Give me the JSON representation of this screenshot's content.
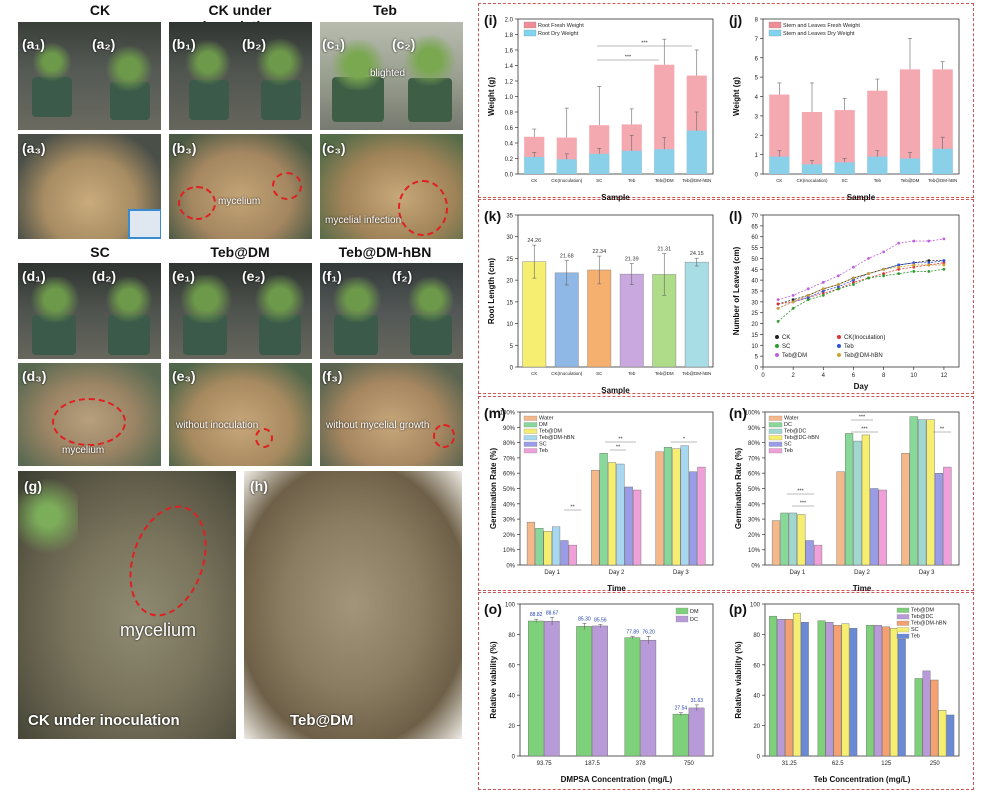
{
  "photos": {
    "group_titles": [
      "CK",
      "CK under inoculation",
      "Teb",
      "SC",
      "Teb@DM",
      "Teb@DM-hBN"
    ],
    "row1_labels": [
      "(a₁)",
      "(a₂)",
      "(b₁)",
      "(b₂)",
      "(c₁)",
      "(c₂)"
    ],
    "row2_labels": [
      "(a₃)",
      "(b₃)",
      "(c₃)"
    ],
    "row3_labels": [
      "(d₁)",
      "(d₂)",
      "(e₁)",
      "(e₂)",
      "(f₁)",
      "(f₂)"
    ],
    "row4_labels": [
      "(d₃)",
      "(e₃)",
      "(f₃)"
    ],
    "label_g": "(g)",
    "label_h": "(h)",
    "notes": {
      "blighted": "blighted",
      "mycelium_b3": "mycelium",
      "mycelial_infection": "mycelial infection",
      "mycelium_d3": "mycelium",
      "without_inoculation": "without inoculation",
      "without_mycelial_growth": "without mycelial growth",
      "mycelium_g": "mycelium"
    },
    "caption_g": "CK under inoculation",
    "caption_h": "Teb@DM"
  },
  "chart_data": [
    {
      "id": "i",
      "label": "(i)",
      "type": "bar",
      "categories": [
        "CK",
        "CK(Inoculation)",
        "SC",
        "Teb",
        "Teb@DM",
        "Teb@DM-hBN"
      ],
      "series": [
        {
          "name": "Root Fresh Weight",
          "values": [
            0.48,
            0.47,
            0.63,
            0.64,
            1.41,
            1.27
          ],
          "err": [
            0.1,
            0.38,
            0.5,
            0.2,
            0.33,
            0.33
          ],
          "color": "#f08c96"
        },
        {
          "name": "Root Dry Weight",
          "values": [
            0.22,
            0.19,
            0.26,
            0.3,
            0.32,
            0.56
          ],
          "err": [
            0.06,
            0.07,
            0.07,
            0.2,
            0.15,
            0.24
          ],
          "color": "#7fd4f0"
        }
      ],
      "xlabel": "Sample",
      "ylabel": "Weight (g)",
      "ylim": [
        0,
        2.0
      ],
      "yticks": [
        "0.0",
        "0.2",
        "0.4",
        "0.6",
        "0.8",
        "1.0",
        "1.2",
        "1.4",
        "1.6",
        "1.8",
        "2.0"
      ],
      "sig": [
        "***",
        "***"
      ]
    },
    {
      "id": "j",
      "label": "(j)",
      "type": "bar",
      "categories": [
        "CK",
        "CK(Inoculation)",
        "SC",
        "Teb",
        "Teb@DM",
        "Teb@DM-hBN"
      ],
      "series": [
        {
          "name": "Stem and Leaves Fresh Weight",
          "values": [
            4.1,
            3.2,
            3.3,
            4.3,
            5.4,
            5.4
          ],
          "err": [
            0.6,
            1.5,
            0.6,
            0.6,
            1.6,
            0.4
          ],
          "color": "#f08c96"
        },
        {
          "name": "Stem and Leaves Dry Weight",
          "values": [
            0.9,
            0.5,
            0.6,
            0.9,
            0.8,
            1.3
          ],
          "err": [
            0.3,
            0.2,
            0.2,
            0.3,
            0.3,
            0.6
          ],
          "color": "#7fd4f0"
        }
      ],
      "xlabel": "Sample",
      "ylabel": "Weight (g)",
      "ylim": [
        0,
        8
      ],
      "yticks": [
        "0",
        "1",
        "2",
        "3",
        "4",
        "5",
        "6",
        "7",
        "8"
      ]
    },
    {
      "id": "k",
      "label": "(k)",
      "type": "bar",
      "categories": [
        "CK",
        "CK(Inoculation)",
        "SC",
        "Teb",
        "Teb@DM",
        "Teb@DM-hBN"
      ],
      "values": [
        24.26,
        21.68,
        22.34,
        21.39,
        21.31,
        24.15
      ],
      "value_labels": [
        "24.26",
        "21.68",
        "22.34",
        "21.39",
        "21.31",
        "24.15"
      ],
      "err": [
        3.8,
        2.8,
        3.2,
        2.4,
        4.8,
        0.9
      ],
      "colors": [
        "#f5ee70",
        "#8fb8e6",
        "#f5b070",
        "#c9a8e0",
        "#aedc88",
        "#a8dde6"
      ],
      "xlabel": "Sample",
      "ylabel": "Root Length (cm)",
      "ylim": [
        0,
        35
      ],
      "yticks": [
        "0",
        "5",
        "10",
        "15",
        "20",
        "25",
        "30",
        "35"
      ]
    },
    {
      "id": "l",
      "label": "(l)",
      "type": "line",
      "x": [
        1,
        2,
        3,
        4,
        5,
        6,
        7,
        8,
        9,
        10,
        11,
        12
      ],
      "series": [
        {
          "name": "CK",
          "values": [
            29,
            31,
            33,
            36,
            38,
            41,
            43,
            45,
            47,
            48,
            49,
            49
          ],
          "color": "#222222"
        },
        {
          "name": "CK(Inoculation)",
          "values": [
            29,
            30,
            32,
            34,
            36,
            39,
            41,
            43,
            45,
            46,
            47,
            48
          ],
          "color": "#e03030"
        },
        {
          "name": "SC",
          "values": [
            21,
            27,
            31,
            33,
            36,
            38,
            41,
            42,
            43,
            44,
            44,
            45
          ],
          "color": "#2f9a2f"
        },
        {
          "name": "Teb",
          "values": [
            27,
            30,
            32,
            35,
            37,
            40,
            43,
            45,
            47,
            48,
            48,
            49
          ],
          "color": "#3050e0"
        },
        {
          "name": "Teb@DM",
          "values": [
            31,
            33,
            36,
            39,
            42,
            46,
            50,
            53,
            57,
            58,
            58,
            59
          ],
          "color": "#c060e0"
        },
        {
          "name": "Teb@DM-hBN",
          "values": [
            27,
            30,
            33,
            36,
            38,
            41,
            43,
            45,
            46,
            47,
            47,
            47
          ],
          "color": "#d0a030"
        }
      ],
      "xlabel": "Day",
      "ylabel": "Number of Leaves (cm)",
      "xlim": [
        0,
        13
      ],
      "ylim": [
        0,
        70
      ],
      "xticks": [
        "0",
        "2",
        "4",
        "6",
        "8",
        "10",
        "12"
      ],
      "yticks": [
        "0",
        "5",
        "10",
        "15",
        "20",
        "25",
        "30",
        "35",
        "40",
        "45",
        "50",
        "55",
        "60",
        "65",
        "70"
      ]
    },
    {
      "id": "m",
      "label": "(m)",
      "type": "bar",
      "categories": [
        "Day 1",
        "Day 2",
        "Day 3"
      ],
      "series": [
        {
          "name": "Water",
          "values": [
            28,
            62,
            74
          ],
          "color": "#f5b88a"
        },
        {
          "name": "DM",
          "values": [
            24,
            73,
            77
          ],
          "color": "#88d89a"
        },
        {
          "name": "Teb@DM",
          "values": [
            22,
            67,
            76
          ],
          "color": "#f5ee70"
        },
        {
          "name": "Teb@DM-hBN",
          "values": [
            25,
            66,
            78
          ],
          "color": "#a8d8f0"
        },
        {
          "name": "SC",
          "values": [
            16,
            51,
            61
          ],
          "color": "#9a9ce8"
        },
        {
          "name": "Teb",
          "values": [
            13,
            49,
            64
          ],
          "color": "#f0a0d8"
        }
      ],
      "xlabel": "Time",
      "ylabel": "Germination Rate (%)",
      "ylim": [
        0,
        100
      ],
      "yticks": [
        "0%",
        "10%",
        "20%",
        "30%",
        "40%",
        "50%",
        "60%",
        "70%",
        "80%",
        "90%",
        "100%"
      ],
      "sig": [
        "**",
        "**",
        "**",
        "*"
      ]
    },
    {
      "id": "n",
      "label": "(n)",
      "type": "bar",
      "categories": [
        "Day 1",
        "Day 2",
        "Day 3"
      ],
      "series": [
        {
          "name": "Water",
          "values": [
            29,
            61,
            73
          ],
          "color": "#f5b88a"
        },
        {
          "name": "DC",
          "values": [
            34,
            86,
            97
          ],
          "color": "#88d89a"
        },
        {
          "name": "Teb@DC",
          "values": [
            34,
            81,
            95
          ],
          "color": "#a0d8d0"
        },
        {
          "name": "Teb@DC-hBN",
          "values": [
            33,
            85,
            95
          ],
          "color": "#f5ee70"
        },
        {
          "name": "SC",
          "values": [
            16,
            50,
            60
          ],
          "color": "#9a9ce8"
        },
        {
          "name": "Teb",
          "values": [
            13,
            49,
            64
          ],
          "color": "#f0a0d8"
        }
      ],
      "xlabel": "Time",
      "ylabel": "Germination Rate (%)",
      "ylim": [
        0,
        100
      ],
      "yticks": [
        "0%",
        "10%",
        "20%",
        "30%",
        "40%",
        "50%",
        "60%",
        "70%",
        "80%",
        "90%",
        "100%"
      ],
      "sig": [
        "***",
        "***",
        "***",
        "***",
        "**"
      ]
    },
    {
      "id": "o",
      "label": "(o)",
      "type": "bar",
      "categories": [
        "93.75",
        "187.5",
        "378",
        "750"
      ],
      "series": [
        {
          "name": "DM",
          "values": [
            88.82,
            85.3,
            77.89,
            27.54
          ],
          "err": [
            1.2,
            2.0,
            0.8,
            1.0
          ],
          "color": "#7ed07a"
        },
        {
          "name": "DC",
          "values": [
            88.67,
            85.56,
            76.2,
            31.63
          ],
          "err": [
            2.5,
            1.0,
            2.5,
            2.0
          ],
          "color": "#b89ad8"
        }
      ],
      "value_labels": [
        [
          "88.82",
          "85.30",
          "77.89",
          "27.54"
        ],
        [
          "88.67",
          "85.56",
          "76.20",
          "31.63"
        ]
      ],
      "xlabel": "DMPSA Concentration (mg/L)",
      "ylabel": "Relative viability (%)",
      "ylim": [
        0,
        100
      ],
      "yticks": [
        "0",
        "20",
        "40",
        "60",
        "80",
        "100"
      ]
    },
    {
      "id": "p",
      "label": "(p)",
      "type": "bar",
      "categories": [
        "31.25",
        "62.5",
        "125",
        "250"
      ],
      "series": [
        {
          "name": "Teb@DM",
          "values": [
            92,
            89,
            86,
            51
          ],
          "color": "#7ed07a"
        },
        {
          "name": "Teb@DC",
          "values": [
            90,
            88,
            86,
            56
          ],
          "color": "#b89ad8"
        },
        {
          "name": "Teb@DM-hBN",
          "values": [
            90,
            86,
            85,
            50
          ],
          "color": "#f5a070"
        },
        {
          "name": "SC",
          "values": [
            94,
            87,
            84,
            30
          ],
          "color": "#f5ee70"
        },
        {
          "name": "Teb",
          "values": [
            88,
            84,
            77,
            27
          ],
          "color": "#6a8ad8"
        }
      ],
      "xlabel": "Teb Concentration (mg/L)",
      "ylabel": "Relative viability (%)",
      "ylim": [
        0,
        100
      ],
      "yticks": [
        "0",
        "20",
        "40",
        "60",
        "80",
        "100"
      ]
    }
  ]
}
